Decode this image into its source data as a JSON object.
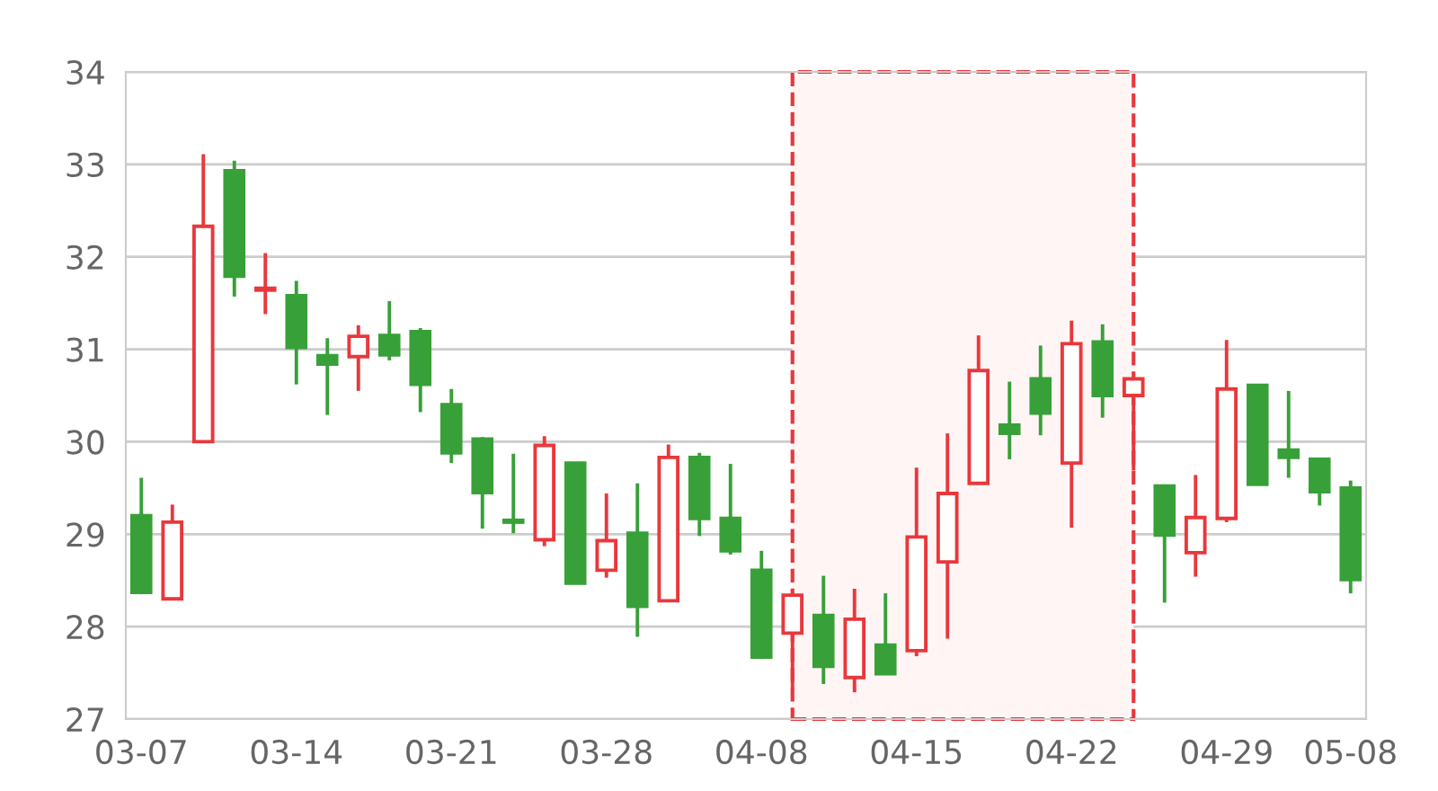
{
  "chart_data": {
    "type": "candlestick",
    "categories": [
      "03-07",
      null,
      null,
      null,
      null,
      "03-14",
      null,
      null,
      null,
      null,
      "03-21",
      null,
      null,
      null,
      null,
      "03-28",
      null,
      null,
      null,
      null,
      "04-08",
      null,
      null,
      null,
      null,
      "04-15",
      null,
      null,
      null,
      null,
      "04-22",
      null,
      null,
      null,
      null,
      "04-29",
      null,
      null,
      null,
      "05-08"
    ],
    "ohlc": [
      [
        29.2,
        29.61,
        28.35,
        28.37
      ],
      [
        28.3,
        29.32,
        28.3,
        29.13
      ],
      [
        30.0,
        33.11,
        30.0,
        32.33
      ],
      [
        32.93,
        33.04,
        31.57,
        31.79
      ],
      [
        31.64,
        32.04,
        31.38,
        31.66
      ],
      [
        31.58,
        31.74,
        30.62,
        31.02
      ],
      [
        30.93,
        31.12,
        30.29,
        30.84
      ],
      [
        30.92,
        31.26,
        30.55,
        31.14
      ],
      [
        31.15,
        31.52,
        30.88,
        30.94
      ],
      [
        31.19,
        31.23,
        30.32,
        30.62
      ],
      [
        30.4,
        30.57,
        29.77,
        29.88
      ],
      [
        30.03,
        30.05,
        29.06,
        29.45
      ],
      [
        29.15,
        29.87,
        29.01,
        29.13
      ],
      [
        28.94,
        30.06,
        28.87,
        29.96
      ],
      [
        29.77,
        29.78,
        28.47,
        28.47
      ],
      [
        28.61,
        29.44,
        28.53,
        28.93
      ],
      [
        29.01,
        29.55,
        27.89,
        28.22
      ],
      [
        28.28,
        29.97,
        28.28,
        29.83
      ],
      [
        29.83,
        29.88,
        28.98,
        29.17
      ],
      [
        29.17,
        29.76,
        28.78,
        28.82
      ],
      [
        28.61,
        28.82,
        27.65,
        27.67
      ],
      [
        27.93,
        28.34,
        27.33,
        28.34
      ],
      [
        28.12,
        28.55,
        27.38,
        27.57
      ],
      [
        27.45,
        28.41,
        27.29,
        28.08
      ],
      [
        27.8,
        28.36,
        27.49,
        27.49
      ],
      [
        27.74,
        29.72,
        27.68,
        28.97
      ],
      [
        28.7,
        30.09,
        27.87,
        29.44
      ],
      [
        29.55,
        31.15,
        29.55,
        30.77
      ],
      [
        30.18,
        30.65,
        29.81,
        30.09
      ],
      [
        30.68,
        31.04,
        30.07,
        30.31
      ],
      [
        29.77,
        31.31,
        29.07,
        31.06
      ],
      [
        31.08,
        31.27,
        30.26,
        30.5
      ],
      [
        30.5,
        30.68,
        29.69,
        30.68
      ],
      [
        29.52,
        29.52,
        28.26,
        28.99
      ],
      [
        28.8,
        29.64,
        28.54,
        29.18
      ],
      [
        29.17,
        31.1,
        29.13,
        30.57
      ],
      [
        30.61,
        30.62,
        29.54,
        29.54
      ],
      [
        29.91,
        30.55,
        29.61,
        29.83
      ],
      [
        29.81,
        29.83,
        29.31,
        29.46
      ],
      [
        29.5,
        29.58,
        28.36,
        28.51
      ]
    ],
    "colors": [
      "#38a038",
      "#e8383c",
      "#e8383c",
      "#38a038",
      "#e8383c",
      "#38a038",
      "#38a038",
      "#e8383c",
      "#38a038",
      "#38a038",
      "#38a038",
      "#38a038",
      "#38a038",
      "#e8383c",
      "#38a038",
      "#e8383c",
      "#38a038",
      "#e8383c",
      "#38a038",
      "#38a038",
      "#38a038",
      "#e8383c",
      "#38a038",
      "#e8383c",
      "#38a038",
      "#e8383c",
      "#e8383c",
      "#e8383c",
      "#38a038",
      "#38a038",
      "#e8383c",
      "#38a038",
      "#e8383c",
      "#38a038",
      "#e8383c",
      "#e8383c",
      "#38a038",
      "#38a038",
      "#38a038",
      "#38a038"
    ],
    "ylim": [
      27,
      34
    ],
    "yticks": [
      27,
      28,
      29,
      30,
      31,
      32,
      33,
      34
    ],
    "grid": "y"
  }
}
